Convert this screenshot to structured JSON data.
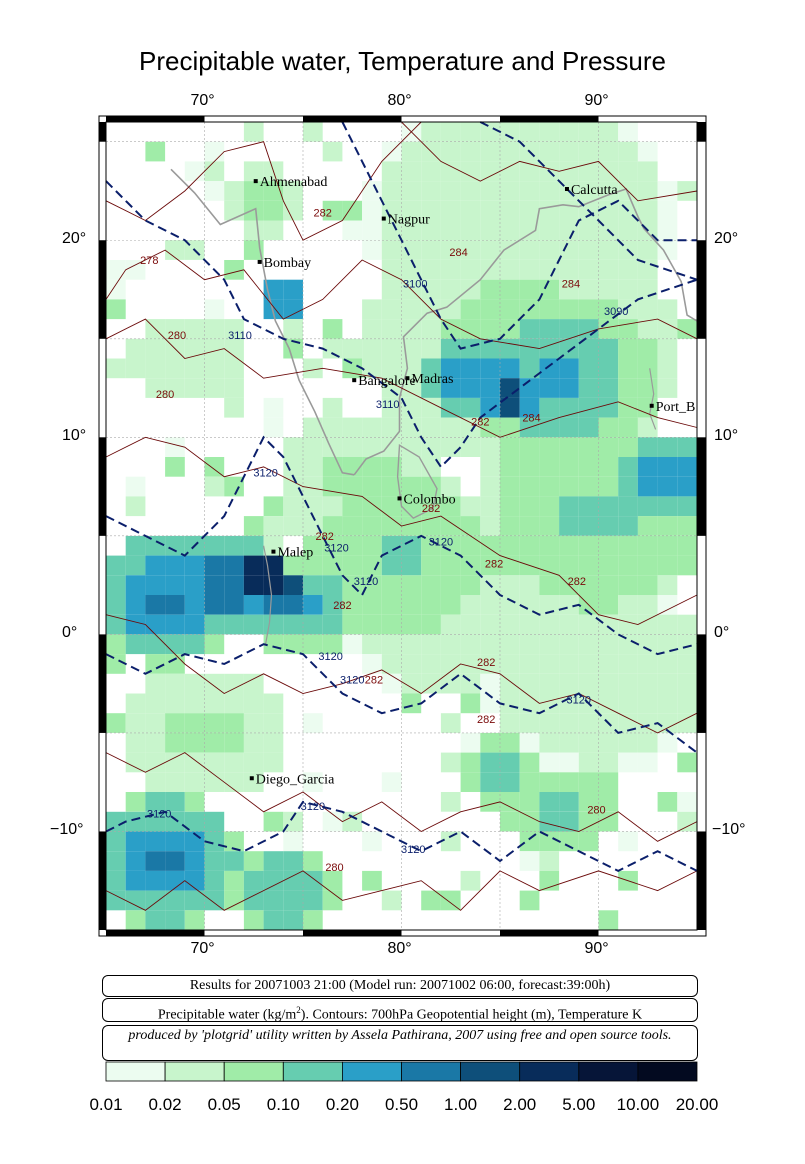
{
  "map": {
    "title": "Precipitable water, Temperature and Pressure",
    "lon_ticks": [
      "70°",
      "80°",
      "90°"
    ],
    "lat_ticks": [
      "20°",
      "10°",
      "0°",
      "−10°"
    ],
    "lon_range": [
      65,
      95
    ],
    "lat_range": [
      -15,
      26
    ],
    "cities": [
      {
        "name": "Ahmenabad",
        "lon": 72.6,
        "lat": 23.0
      },
      {
        "name": "Calcutta",
        "lon": 88.4,
        "lat": 22.6
      },
      {
        "name": "Nagpur",
        "lon": 79.1,
        "lat": 21.1
      },
      {
        "name": "Bombay",
        "lon": 72.8,
        "lat": 18.9
      },
      {
        "name": "Bangalore",
        "lon": 77.6,
        "lat": 12.9
      },
      {
        "name": "Madras",
        "lon": 80.3,
        "lat": 13.0
      },
      {
        "name": "Port_B",
        "lon": 92.7,
        "lat": 11.6
      },
      {
        "name": "Colombo",
        "lon": 79.9,
        "lat": 6.9
      },
      {
        "name": "Malep",
        "lon": 73.5,
        "lat": 4.2
      },
      {
        "name": "Diego_Garcia",
        "lon": 72.4,
        "lat": -7.3
      }
    ],
    "contour_labels": [
      {
        "text": "282",
        "lon": 76.0,
        "lat": 21.2,
        "kind": "temp"
      },
      {
        "text": "278",
        "lon": 67.2,
        "lat": 18.8,
        "kind": "temp"
      },
      {
        "text": "280",
        "lon": 68.6,
        "lat": 15.0,
        "kind": "temp"
      },
      {
        "text": "280",
        "lon": 68.0,
        "lat": 12.0,
        "kind": "temp"
      },
      {
        "text": "284",
        "lon": 86.6,
        "lat": 10.8,
        "kind": "temp"
      },
      {
        "text": "284",
        "lon": 88.6,
        "lat": 17.6,
        "kind": "temp"
      },
      {
        "text": "282",
        "lon": 84.0,
        "lat": 10.6,
        "kind": "temp"
      },
      {
        "text": "282",
        "lon": 81.5,
        "lat": 6.2,
        "kind": "temp"
      },
      {
        "text": "282",
        "lon": 76.1,
        "lat": 4.8,
        "kind": "temp"
      },
      {
        "text": "282",
        "lon": 77.0,
        "lat": 1.3,
        "kind": "temp"
      },
      {
        "text": "282",
        "lon": 84.7,
        "lat": 3.4,
        "kind": "temp"
      },
      {
        "text": "282",
        "lon": 88.9,
        "lat": 2.5,
        "kind": "temp"
      },
      {
        "text": "282",
        "lon": 84.3,
        "lat": -1.6,
        "kind": "temp"
      },
      {
        "text": "282",
        "lon": 78.6,
        "lat": -2.5,
        "kind": "temp"
      },
      {
        "text": "282",
        "lon": 84.3,
        "lat": -4.5,
        "kind": "temp"
      },
      {
        "text": "280",
        "lon": 89.9,
        "lat": -9.1,
        "kind": "temp"
      },
      {
        "text": "280",
        "lon": 76.6,
        "lat": -12.0,
        "kind": "temp"
      },
      {
        "text": "3100",
        "lon": 80.7,
        "lat": 17.6,
        "kind": "height"
      },
      {
        "text": "284",
        "lon": 82.9,
        "lat": 19.2,
        "kind": "temp"
      },
      {
        "text": "3090",
        "lon": 90.9,
        "lat": 16.2,
        "kind": "height"
      },
      {
        "text": "3110",
        "lon": 71.8,
        "lat": 15.0,
        "kind": "height"
      },
      {
        "text": "3110",
        "lon": 79.3,
        "lat": 11.5,
        "kind": "height"
      },
      {
        "text": "3120",
        "lon": 73.1,
        "lat": 8.0,
        "kind": "height"
      },
      {
        "text": "3120",
        "lon": 76.7,
        "lat": 4.2,
        "kind": "height"
      },
      {
        "text": "3120",
        "lon": 78.2,
        "lat": 2.5,
        "kind": "height"
      },
      {
        "text": "3120",
        "lon": 82.0,
        "lat": 4.5,
        "kind": "height"
      },
      {
        "text": "3120",
        "lon": 76.4,
        "lat": -1.3,
        "kind": "height"
      },
      {
        "text": "3120",
        "lon": 77.5,
        "lat": -2.5,
        "kind": "height"
      },
      {
        "text": "3120",
        "lon": 89.0,
        "lat": -3.5,
        "kind": "height"
      },
      {
        "text": "3120",
        "lon": 67.7,
        "lat": -9.3,
        "kind": "height"
      },
      {
        "text": "3120",
        "lon": 75.5,
        "lat": -8.9,
        "kind": "height"
      },
      {
        "text": "3120",
        "lon": 80.6,
        "lat": -11.1,
        "kind": "height"
      }
    ]
  },
  "info": {
    "results": "Results for 20071003 21:00 (Model run: 20071002 06:00, forecast:39:00h)",
    "legend_prefix": "Precipitable water (kg/m",
    "legend_sup": "2",
    "legend_suffix": ").  Contours: 700hPa Geopotential height (m), Temperature K",
    "credit": "produced by 'plotgrid' utility written by Assela Pathirana, 2007 using free and open source tools."
  },
  "colorbar": {
    "labels": [
      "0.01",
      "0.02",
      "0.05",
      "0.10",
      "0.20",
      "0.50",
      "1.00",
      "2.00",
      "5.00",
      "10.00",
      "20.00"
    ],
    "colors": [
      "#ecfcf0",
      "#c8f5cc",
      "#a0eca8",
      "#66cdb0",
      "#2a9fc8",
      "#1a78a6",
      "#0e4f7a",
      "#082c5a",
      "#061538",
      "#030a20"
    ]
  }
}
